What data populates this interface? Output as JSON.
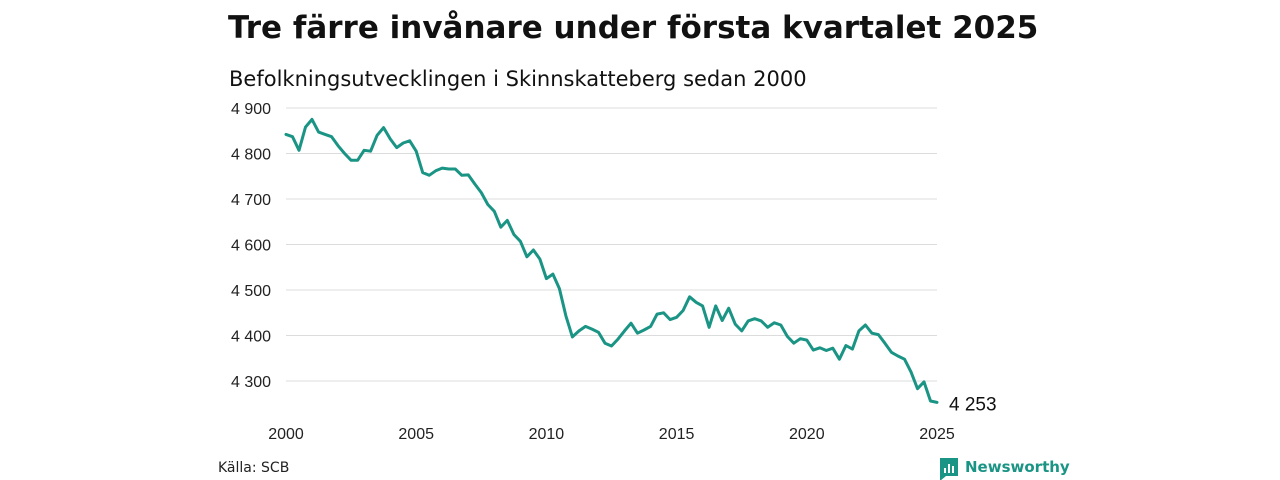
{
  "colors": {
    "line": "#1a9484",
    "grid": "#dcdcdc",
    "brand": "#1a9484"
  },
  "chart_data": {
    "type": "line",
    "title": "Tre färre invånare under första kvartalet 2025",
    "subtitle": "Befolkningsutvecklingen i Skinnskatteberg sedan 2000",
    "ylim": [
      4250,
      4900
    ],
    "yticks": [
      4900,
      4800,
      4700,
      4600,
      4500,
      4400,
      4300
    ],
    "ytick_labels": [
      "4 900",
      "4 800",
      "4 700",
      "4 600",
      "4 500",
      "4 400",
      "4 300"
    ],
    "xlim": [
      2000,
      2025
    ],
    "xticks": [
      2000,
      2005,
      2010,
      2015,
      2020,
      2025
    ],
    "xtick_labels": [
      "2000",
      "2005",
      "2010",
      "2015",
      "2020",
      "2025"
    ],
    "grid": true,
    "end_label": "4 253",
    "series": [
      {
        "x": [
          2000.0,
          2000.25,
          2000.5,
          2000.75,
          2001.0,
          2001.25,
          2001.5,
          2001.75,
          2002.0,
          2002.25,
          2002.5,
          2002.75,
          2003.0,
          2003.25,
          2003.5,
          2003.75,
          2004.0,
          2004.25,
          2004.5,
          2004.75,
          2005.0,
          2005.25,
          2005.5,
          2005.75,
          2006.0,
          2006.25,
          2006.5,
          2006.75,
          2007.0,
          2007.25,
          2007.5,
          2007.75,
          2008.0,
          2008.25,
          2008.5,
          2008.75,
          2009.0,
          2009.25,
          2009.5,
          2009.75,
          2010.0,
          2010.25,
          2010.5,
          2010.75,
          2011.0,
          2011.25,
          2011.5,
          2011.75,
          2012.0,
          2012.25,
          2012.5,
          2012.75,
          2013.0,
          2013.25,
          2013.5,
          2013.75,
          2014.0,
          2014.25,
          2014.5,
          2014.75,
          2015.0,
          2015.25,
          2015.5,
          2015.75,
          2016.0,
          2016.25,
          2016.5,
          2016.75,
          2017.0,
          2017.25,
          2017.5,
          2017.75,
          2018.0,
          2018.25,
          2018.5,
          2018.75,
          2019.0,
          2019.25,
          2019.5,
          2019.75,
          2020.0,
          2020.25,
          2020.5,
          2020.75,
          2021.0,
          2021.25,
          2021.5,
          2021.75,
          2022.0,
          2022.25,
          2022.5,
          2022.75,
          2023.0,
          2023.25,
          2023.5,
          2023.75,
          2024.0,
          2024.25,
          2024.5,
          2024.75,
          2025.0
        ],
        "y": [
          4842,
          4837,
          4807,
          4858,
          4875,
          4847,
          4842,
          4837,
          4817,
          4800,
          4785,
          4785,
          4807,
          4805,
          4840,
          4857,
          4832,
          4813,
          4823,
          4828,
          4805,
          4758,
          4752,
          4762,
          4768,
          4766,
          4766,
          4752,
          4753,
          4733,
          4714,
          4688,
          4673,
          4638,
          4653,
          4622,
          4607,
          4573,
          4588,
          4568,
          4525,
          4535,
          4503,
          4443,
          4397,
          4410,
          4420,
          4414,
          4407,
          4383,
          4377,
          4392,
          4410,
          4427,
          4405,
          4412,
          4420,
          4447,
          4450,
          4435,
          4440,
          4455,
          4485,
          4473,
          4465,
          4418,
          4465,
          4433,
          4460,
          4425,
          4410,
          4432,
          4437,
          4432,
          4418,
          4428,
          4423,
          4398,
          4383,
          4393,
          4390,
          4368,
          4373,
          4367,
          4372,
          4348,
          4378,
          4370,
          4410,
          4423,
          4405,
          4402,
          4383,
          4363,
          4355,
          4348,
          4320,
          4283,
          4298,
          4256,
          4253
        ]
      }
    ]
  },
  "footer": {
    "source": "Källa: SCB",
    "brand": "Newsworthy"
  }
}
